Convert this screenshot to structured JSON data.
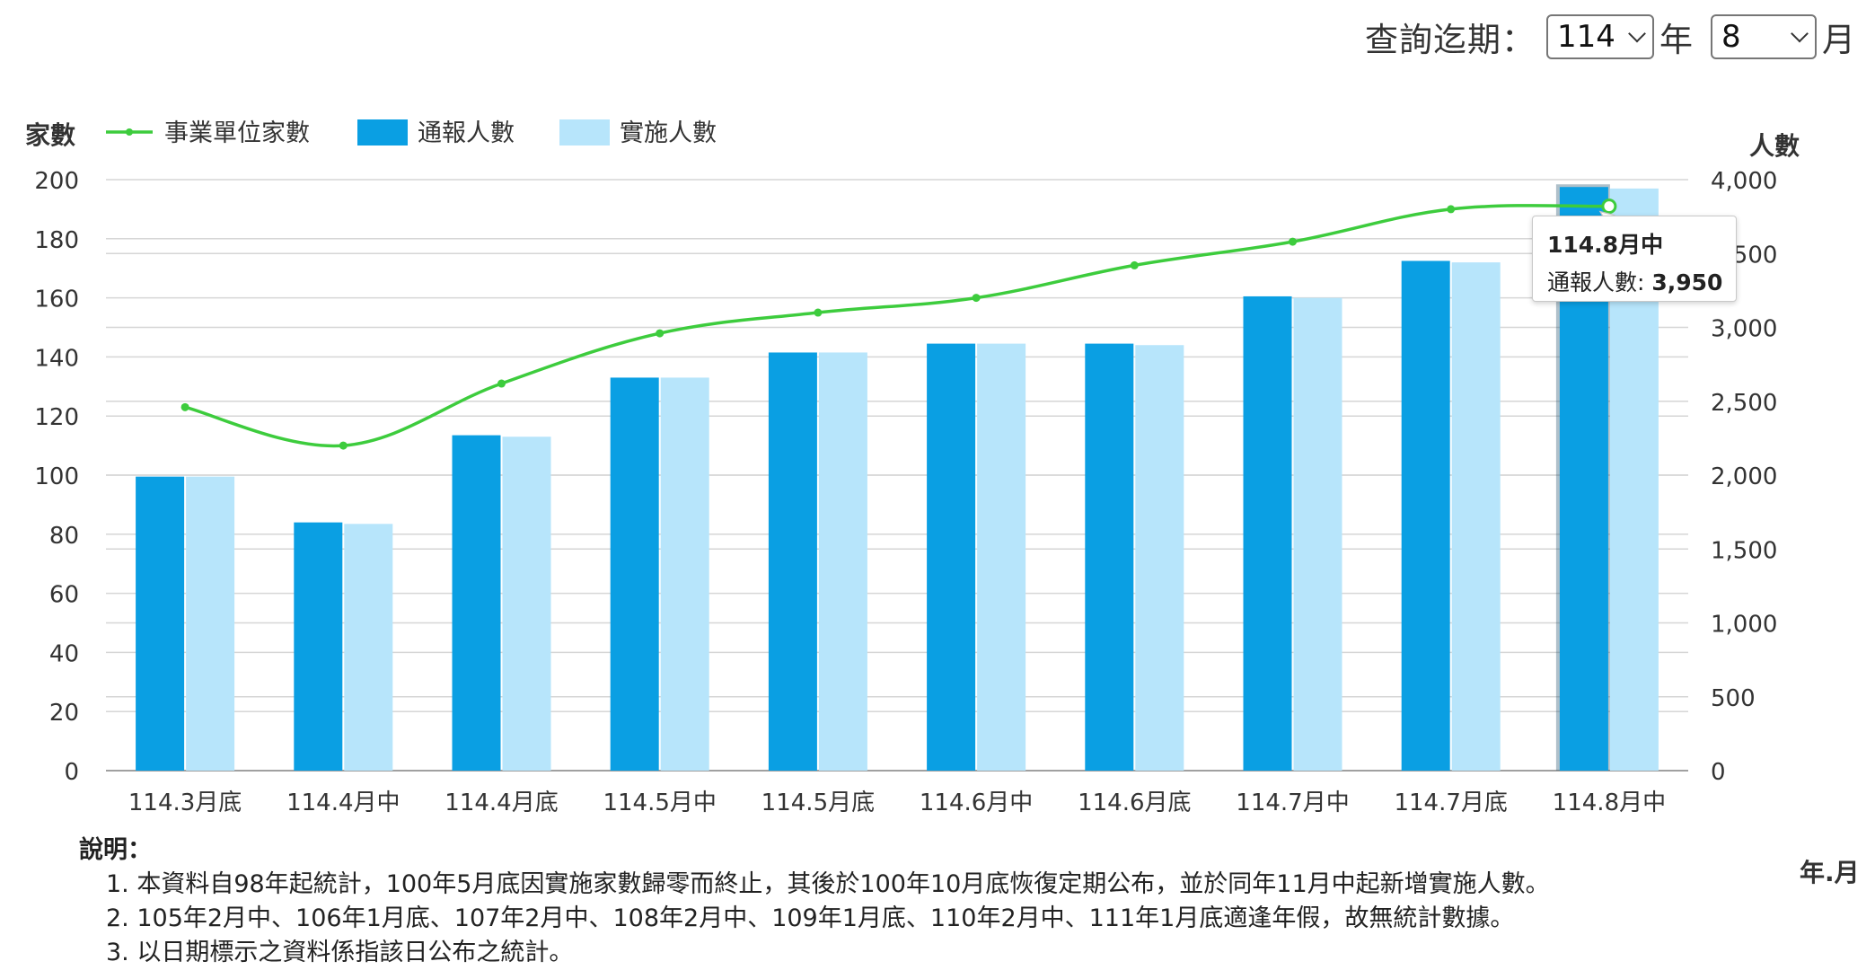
{
  "query": {
    "label": "查詢迄期：",
    "year_value": "114",
    "year_unit": "年",
    "month_value": "8",
    "month_unit": "月"
  },
  "legend": {
    "line_label": "事業單位家數",
    "bar1_label": "通報人數",
    "bar2_label": "實施人數"
  },
  "colors": {
    "line": "#3dcc3d",
    "bar1": "#0a9fe3",
    "bar2": "#b7e5fb",
    "grid": "#d6d6d6"
  },
  "tooltip": {
    "title": "114.8月中",
    "label": "通報人數: ",
    "value": "3,950"
  },
  "notes": {
    "title": "說明：",
    "lines": [
      "1. 本資料自98年起統計，100年5月底因實施家數歸零而終止，其後於100年10月底恢復定期公布，並於同年11月中起新增實施人數。",
      "2. 105年2月中、106年1月底、107年2月中、108年2月中、109年1月底、110年2月中、111年1月底適逢年假，故無統計數據。",
      "3. 以日期標示之資料係指該日公布之統計。"
    ]
  },
  "chart_data": {
    "type": "bar",
    "categories": [
      "114.3月底",
      "114.4月中",
      "114.4月底",
      "114.5月中",
      "114.5月底",
      "114.6月中",
      "114.6月底",
      "114.7月中",
      "114.7月底",
      "114.8月中"
    ],
    "y_left": {
      "label": "家數",
      "min": 0,
      "max": 200,
      "ticks": [
        "0",
        "20",
        "40",
        "60",
        "80",
        "100",
        "120",
        "140",
        "160",
        "180",
        "200"
      ]
    },
    "y_right": {
      "label": "人數",
      "min": 0,
      "max": 4000,
      "ticks": [
        "0",
        "500",
        "1,000",
        "1,500",
        "2,000",
        "2,500",
        "3,000",
        "3,500",
        "4,000"
      ]
    },
    "x_unit_label": "年.月",
    "series": [
      {
        "name": "事業單位家數",
        "type": "line",
        "axis": "left",
        "values": [
          123,
          110,
          131,
          148,
          155,
          160,
          171,
          179,
          190,
          191
        ]
      },
      {
        "name": "通報人數",
        "type": "bar",
        "axis": "right",
        "values": [
          1990,
          1680,
          2270,
          2660,
          2830,
          2890,
          2890,
          3210,
          3450,
          3950
        ]
      },
      {
        "name": "實施人數",
        "type": "bar",
        "axis": "right",
        "values": [
          1990,
          1670,
          2260,
          2660,
          2830,
          2890,
          2880,
          3200,
          3440,
          3940
        ]
      }
    ],
    "legend_position": "top-left",
    "grid": true,
    "highlighted_category": "114.8月中"
  }
}
